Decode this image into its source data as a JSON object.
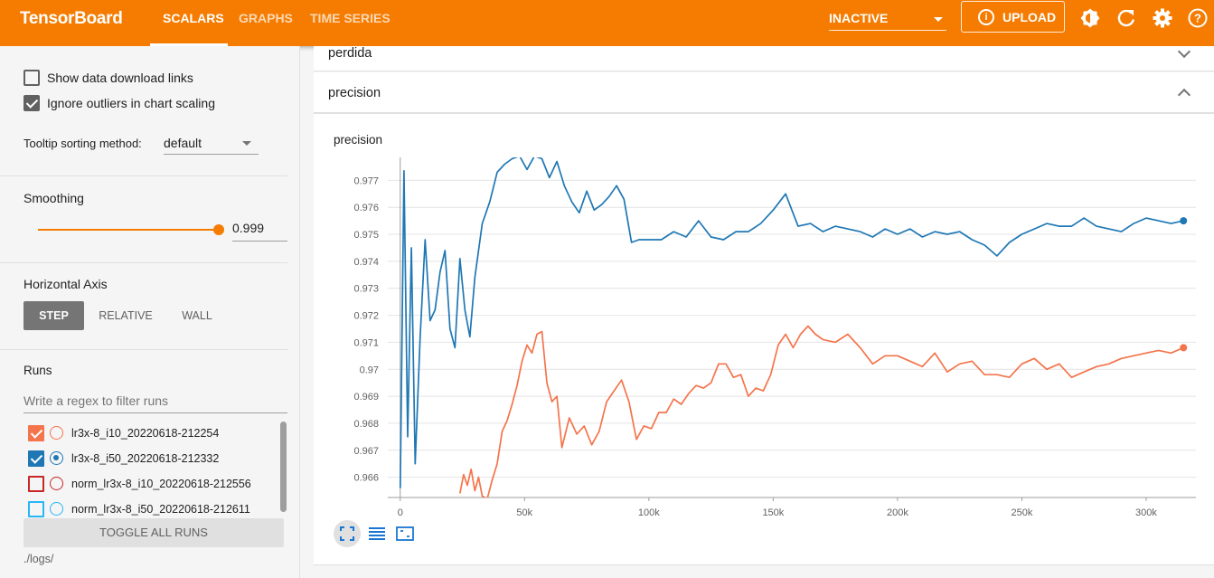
{
  "app": {
    "title": "TensorBoard",
    "tabs": [
      {
        "label": "SCALARS",
        "active": true
      },
      {
        "label": "GRAPHS",
        "active": false
      },
      {
        "label": "TIME SERIES",
        "active": false
      }
    ],
    "run_status": "INACTIVE",
    "upload_label": "UPLOAD",
    "upload_icon": "info-icon",
    "toolbar_icons": [
      "brightness-icon",
      "refresh-icon",
      "settings-icon",
      "help-icon"
    ],
    "accent_color": "#f57c00"
  },
  "sidebar": {
    "show_download_links": {
      "label": "Show data download links",
      "checked": false
    },
    "ignore_outliers": {
      "label": "Ignore outliers in chart scaling",
      "checked": true
    },
    "tooltip_sorting": {
      "label": "Tooltip sorting method:",
      "value": "default"
    },
    "smoothing": {
      "label": "Smoothing",
      "value": "0.999",
      "level": 0.999
    },
    "horizontal_axis": {
      "label": "Horizontal Axis",
      "options": [
        {
          "label": "STEP",
          "active": true
        },
        {
          "label": "RELATIVE",
          "active": false
        },
        {
          "label": "WALL",
          "active": false
        }
      ]
    },
    "runs": {
      "label": "Runs",
      "filter_placeholder": "Write a regex to filter runs",
      "items": [
        {
          "name": "lr3x-8_i10_20220618-212254",
          "checked": true,
          "selected": false,
          "color": "#f4744c"
        },
        {
          "name": "lr3x-8_i50_20220618-212332",
          "checked": true,
          "selected": true,
          "color": "#1f77b4"
        },
        {
          "name": "norm_lr3x-8_i10_20220618-212556",
          "checked": false,
          "selected": false,
          "color": "#c62828"
        },
        {
          "name": "norm_lr3x-8_i50_20220618-212611",
          "checked": false,
          "selected": false,
          "color": "#29b6f6"
        }
      ]
    },
    "toggle_all_label": "TOGGLE ALL RUNS",
    "logdir": "./logs/"
  },
  "main": {
    "groups": [
      {
        "name": "perdida",
        "expanded": false
      },
      {
        "name": "precision",
        "expanded": true
      }
    ],
    "card_title": "precision",
    "chart_tools": [
      "fit-domain-icon",
      "toggle-log-scale-icon",
      "select-zoom-icon"
    ]
  },
  "chart_data": {
    "type": "line",
    "title": "precision",
    "xlabel": "",
    "ylabel": "",
    "xlim": [
      -5000,
      320000
    ],
    "ylim": [
      0.96525,
      0.97785
    ],
    "x_ticks": [
      0,
      50000,
      100000,
      150000,
      200000,
      250000,
      300000
    ],
    "x_tick_labels": [
      "0",
      "50k",
      "100k",
      "150k",
      "200k",
      "250k",
      "300k"
    ],
    "y_ticks": [
      0.966,
      0.967,
      0.968,
      0.969,
      0.97,
      0.971,
      0.972,
      0.973,
      0.974,
      0.975,
      0.976,
      0.977
    ],
    "y_tick_labels": [
      "0.966",
      "0.967",
      "0.968",
      "0.969",
      "0.97",
      "0.971",
      "0.972",
      "0.973",
      "0.974",
      "0.975",
      "0.976",
      "0.977"
    ],
    "grid": true,
    "series": [
      {
        "run": "lr3x-8_i50_20220618-212332",
        "color": "#1f77b4",
        "x": [
          0,
          1500,
          3000,
          4500,
          6000,
          8000,
          10000,
          12000,
          14000,
          16000,
          18000,
          20000,
          22000,
          24000,
          26000,
          28000,
          30000,
          33000,
          36000,
          39000,
          42000,
          45000,
          48000,
          51000,
          54000,
          57000,
          60000,
          63000,
          66000,
          69000,
          72000,
          75000,
          78000,
          81000,
          84000,
          87000,
          90000,
          93000,
          96000,
          100000,
          105000,
          110000,
          115000,
          120000,
          125000,
          130000,
          135000,
          140000,
          145000,
          150000,
          155000,
          160000,
          165000,
          170000,
          175000,
          180000,
          185000,
          190000,
          195000,
          200000,
          205000,
          210000,
          215000,
          220000,
          225000,
          230000,
          235000,
          240000,
          245000,
          250000,
          255000,
          260000,
          265000,
          270000,
          275000,
          280000,
          285000,
          290000,
          295000,
          300000,
          305000,
          310000,
          315000
        ],
        "y": [
          0.9656,
          0.97735,
          0.9675,
          0.9745,
          0.9665,
          0.9712,
          0.9748,
          0.9718,
          0.9722,
          0.9736,
          0.9744,
          0.9715,
          0.9708,
          0.9741,
          0.9722,
          0.9712,
          0.9734,
          0.9754,
          0.9762,
          0.9773,
          0.9776,
          0.9778,
          0.9779,
          0.9774,
          0.9779,
          0.9778,
          0.9771,
          0.9777,
          0.9768,
          0.9762,
          0.9758,
          0.9766,
          0.9759,
          0.9761,
          0.9764,
          0.9768,
          0.9763,
          0.9747,
          0.9748,
          0.9748,
          0.9748,
          0.9751,
          0.9749,
          0.9755,
          0.9749,
          0.9748,
          0.9751,
          0.9751,
          0.9754,
          0.9759,
          0.9765,
          0.9753,
          0.9754,
          0.9751,
          0.9753,
          0.9752,
          0.9751,
          0.9749,
          0.9752,
          0.975,
          0.9752,
          0.9749,
          0.9751,
          0.975,
          0.9751,
          0.9748,
          0.9746,
          0.9742,
          0.9747,
          0.975,
          0.9752,
          0.9754,
          0.9753,
          0.9753,
          0.9756,
          0.9753,
          0.9752,
          0.9751,
          0.9754,
          0.9756,
          0.9755,
          0.9754,
          0.9755
        ]
      },
      {
        "run": "lr3x-8_i10_20220618-212254",
        "color": "#f4744c",
        "x": [
          24000,
          25500,
          27000,
          28500,
          30000,
          31500,
          33000,
          35000,
          37000,
          39000,
          41000,
          43000,
          45000,
          47000,
          49000,
          51000,
          53000,
          55000,
          57000,
          59000,
          61000,
          63000,
          65000,
          68000,
          71000,
          74000,
          77000,
          80000,
          83000,
          86000,
          89000,
          92000,
          95000,
          98000,
          101000,
          104000,
          107000,
          110000,
          113000,
          116000,
          119000,
          122000,
          125000,
          128000,
          131000,
          134000,
          137000,
          140000,
          143000,
          146000,
          149000,
          152000,
          155000,
          158000,
          161000,
          164000,
          167000,
          170000,
          175000,
          180000,
          185000,
          190000,
          195000,
          200000,
          205000,
          210000,
          215000,
          220000,
          225000,
          230000,
          235000,
          240000,
          245000,
          250000,
          255000,
          260000,
          265000,
          270000,
          275000,
          280000,
          285000,
          290000,
          295000,
          300000,
          305000,
          310000,
          315000
        ],
        "y": [
          0.9654,
          0.9661,
          0.9657,
          0.9663,
          0.9655,
          0.966,
          0.9653,
          0.9652,
          0.9659,
          0.9665,
          0.9677,
          0.9681,
          0.9687,
          0.9694,
          0.9703,
          0.9709,
          0.9706,
          0.9713,
          0.9714,
          0.9695,
          0.9688,
          0.969,
          0.9671,
          0.9682,
          0.9676,
          0.9679,
          0.9672,
          0.9677,
          0.9688,
          0.9692,
          0.9696,
          0.9688,
          0.9674,
          0.9679,
          0.9678,
          0.9684,
          0.9684,
          0.9689,
          0.9687,
          0.9691,
          0.9694,
          0.9693,
          0.9695,
          0.9702,
          0.9702,
          0.9697,
          0.9698,
          0.969,
          0.9693,
          0.9692,
          0.9698,
          0.9709,
          0.9713,
          0.9708,
          0.9713,
          0.9716,
          0.9713,
          0.9711,
          0.971,
          0.9713,
          0.9708,
          0.9702,
          0.9705,
          0.9705,
          0.9703,
          0.9701,
          0.9706,
          0.9699,
          0.9702,
          0.9703,
          0.9698,
          0.9698,
          0.9697,
          0.9702,
          0.9704,
          0.97,
          0.9702,
          0.9697,
          0.9699,
          0.9701,
          0.9702,
          0.9704,
          0.9705,
          0.9706,
          0.9707,
          0.9706,
          0.9708
        ]
      }
    ]
  }
}
